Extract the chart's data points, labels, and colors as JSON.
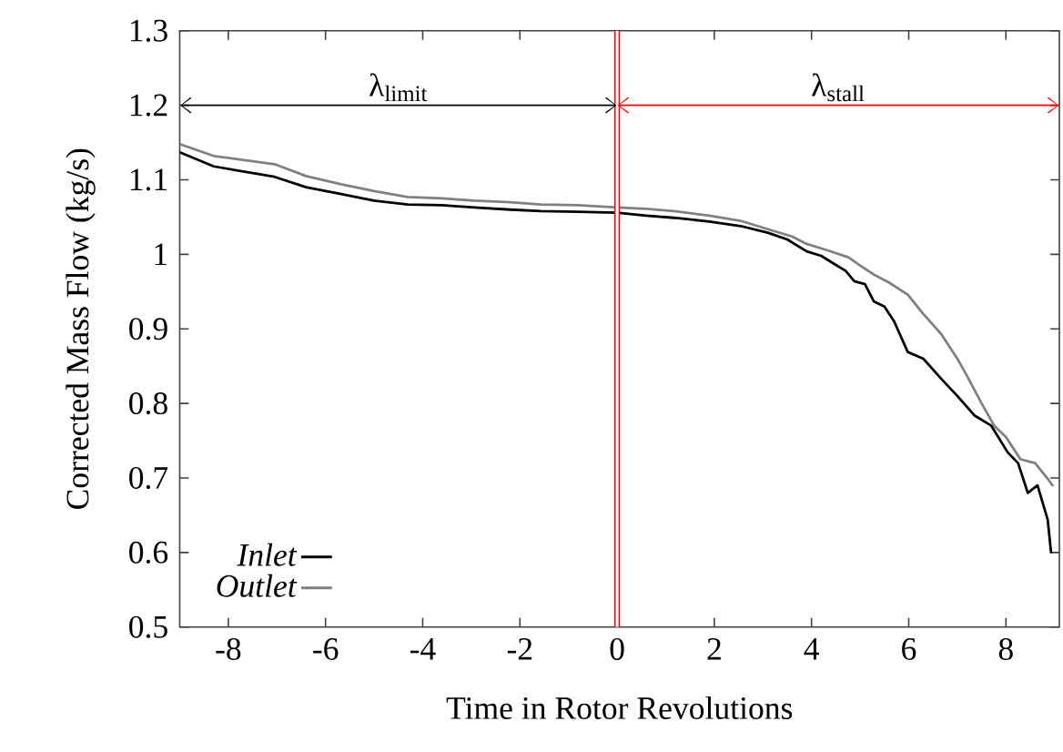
{
  "chart_data": {
    "type": "line",
    "xlabel": "Time in Rotor Revolutions",
    "ylabel": "Corrected Mass Flow (kg/s)",
    "xlim": [
      -9,
      9.1
    ],
    "ylim": [
      0.5,
      1.3
    ],
    "xticks": [
      -8,
      -6,
      -4,
      -2,
      0,
      2,
      4,
      6,
      8
    ],
    "yticks": [
      0.5,
      0.6,
      0.7,
      0.8,
      0.9,
      1,
      1.1,
      1.2,
      1.3
    ],
    "legend": "bottom left",
    "grid": false,
    "line_style": "solid",
    "marker": "none",
    "ref_lines": [
      {
        "axis": "x",
        "value": 0,
        "color": "#ff0000"
      }
    ],
    "annotations": [
      "λ$_{limit}$",
      "λ$_{stall}$"
    ],
    "series": [
      {
        "name": "Inlet",
        "color": "#000000",
        "x": [
          -9,
          -8.3,
          -7.05,
          -6.4,
          -5.68,
          -5.0,
          -4.31,
          -3.6,
          -2.94,
          -2.2,
          -1.57,
          -0.8,
          0,
          0.6,
          1.17,
          1.9,
          2.54,
          3.1,
          3.5,
          3.9,
          4.2,
          4.47,
          4.7,
          4.88,
          5.1,
          5.28,
          5.5,
          5.7,
          5.98,
          6.3,
          6.67,
          7.0,
          7.35,
          7.7,
          8.04,
          8.25,
          8.45,
          8.65,
          8.86,
          8.93
        ],
        "values": [
          1.137,
          1.118,
          1.104,
          1.09,
          1.081,
          1.072,
          1.067,
          1.066,
          1.063,
          1.06,
          1.058,
          1.057,
          1.056,
          1.052,
          1.049,
          1.044,
          1.038,
          1.029,
          1.02,
          1.004,
          0.998,
          0.987,
          0.978,
          0.964,
          0.96,
          0.937,
          0.93,
          0.91,
          0.869,
          0.86,
          0.833,
          0.81,
          0.784,
          0.77,
          0.734,
          0.72,
          0.68,
          0.69,
          0.644,
          0.599
        ]
      },
      {
        "name": "Outlet",
        "color": "#808080",
        "x": [
          -9,
          -8.3,
          -7.05,
          -6.4,
          -5.68,
          -5.0,
          -4.31,
          -3.6,
          -2.94,
          -2.2,
          -1.57,
          -0.8,
          0,
          0.6,
          1.17,
          1.9,
          2.54,
          3.24,
          3.6,
          3.9,
          4.3,
          4.76,
          5.0,
          5.28,
          5.6,
          5.98,
          6.3,
          6.67,
          7.0,
          7.2,
          7.5,
          7.76,
          8.0,
          8.3,
          8.6,
          8.86,
          8.97
        ],
        "values": [
          1.148,
          1.132,
          1.121,
          1.105,
          1.094,
          1.085,
          1.077,
          1.075,
          1.072,
          1.07,
          1.067,
          1.066,
          1.063,
          1.061,
          1.058,
          1.052,
          1.045,
          1.031,
          1.024,
          1.014,
          1.006,
          0.996,
          0.985,
          0.973,
          0.962,
          0.946,
          0.92,
          0.893,
          0.86,
          0.837,
          0.8,
          0.77,
          0.755,
          0.725,
          0.72,
          0.699,
          0.689
        ]
      }
    ]
  }
}
